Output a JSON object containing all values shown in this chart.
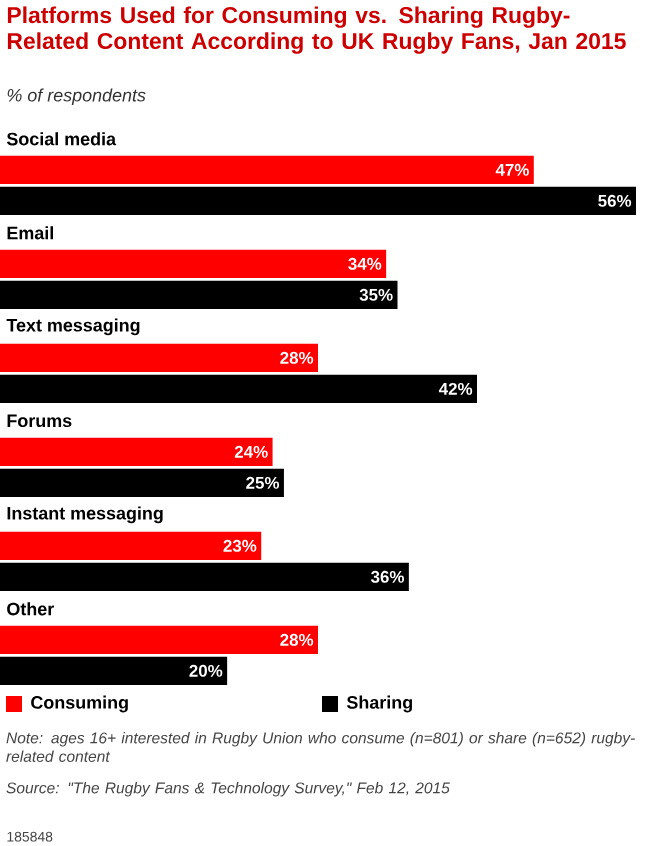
{
  "chart_data": {
    "type": "bar",
    "orientation": "horizontal",
    "title": "Platforms Used for Consuming vs. Sharing Rugby-Related Content According to UK Rugby Fans, Jan 2015",
    "subtitle": "% of respondents",
    "categories": [
      "Social media",
      "Email",
      "Text messaging",
      "Forums",
      "Instant messaging",
      "Other"
    ],
    "series": [
      {
        "name": "Consuming",
        "color": "#ff0000",
        "values": [
          47,
          34,
          28,
          24,
          23,
          28
        ],
        "value_labels": [
          "47%",
          "34%",
          "28%",
          "24%",
          "23%",
          "28%"
        ]
      },
      {
        "name": "Sharing",
        "color": "#000000",
        "values": [
          56,
          35,
          42,
          25,
          36,
          20
        ],
        "value_labels": [
          "56%",
          "35%",
          "42%",
          "25%",
          "36%",
          "20%"
        ]
      }
    ],
    "legend": "bottom",
    "annotations": [
      "Note: ages 16+ interested in Rugby Union who consume (n=801) or share (n=652) rugby-related content",
      "Source: \"The Rugby Fans & Technology Survey,\" Feb 12, 2015",
      "185848"
    ]
  }
}
